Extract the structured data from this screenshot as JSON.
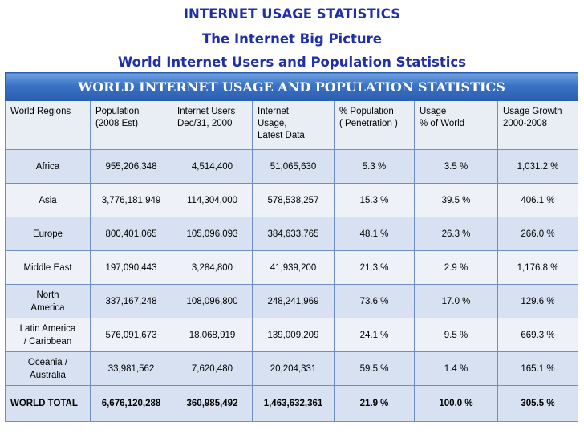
{
  "titles": {
    "line1": "INTERNET USAGE STATISTICS",
    "line2": "The Internet Big Picture",
    "line3": "World Internet Users and Population Statistics"
  },
  "table": {
    "heading": "WORLD INTERNET USAGE AND POPULATION STATISTICS",
    "columns": [
      "World Regions",
      "Population\n(2008 Est)",
      "Internet Users\nDec/31, 2000",
      "Internet\nUsage,\nLatest Data",
      "% Population\n( Penetration )",
      "Usage\n% of World",
      "Usage Growth\n2000-2008"
    ],
    "rows": [
      {
        "region": "Africa",
        "population": "955,206,348",
        "users2000": "4,514,400",
        "usage": "51,065,630",
        "penetration": "5.3 %",
        "world": "3.5 %",
        "growth": "1,031.2 %"
      },
      {
        "region": "Asia",
        "population": "3,776,181,949",
        "users2000": "114,304,000",
        "usage": "578,538,257",
        "penetration": "15.3 %",
        "world": "39.5 %",
        "growth": "406.1 %"
      },
      {
        "region": "Europe",
        "population": "800,401,065",
        "users2000": "105,096,093",
        "usage": "384,633,765",
        "penetration": "48.1 %",
        "world": "26.3 %",
        "growth": "266.0 %"
      },
      {
        "region": "Middle East",
        "population": "197,090,443",
        "users2000": "3,284,800",
        "usage": "41,939,200",
        "penetration": "21.3 %",
        "world": "2.9 %",
        "growth": "1,176.8 %"
      },
      {
        "region": "North\nAmerica",
        "population": "337,167,248",
        "users2000": "108,096,800",
        "usage": "248,241,969",
        "penetration": "73.6 %",
        "world": "17.0 %",
        "growth": "129.6 %"
      },
      {
        "region": "Latin America\n/ Caribbean",
        "population": "576,091,673",
        "users2000": "18,068,919",
        "usage": "139,009,209",
        "penetration": "24.1 %",
        "world": "9.5 %",
        "growth": "669.3 %"
      },
      {
        "region": "Oceania /\nAustralia",
        "population": "33,981,562",
        "users2000": "7,620,480",
        "usage": "20,204,331",
        "penetration": "59.5 %",
        "world": "1.4 %",
        "growth": "165.1 %"
      }
    ],
    "total": {
      "region": "WORLD TOTAL",
      "population": "6,676,120,288",
      "users2000": "360,985,492",
      "usage": "1,463,632,361",
      "penetration": "21.9 %",
      "world": "100.0 %",
      "growth": "305.5 %"
    }
  }
}
